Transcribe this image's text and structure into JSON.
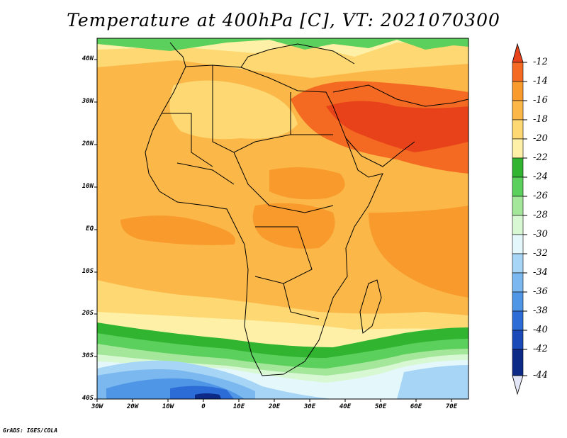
{
  "title": "Temperature at 400hPa [C], VT: 2021070300",
  "footer": "GrADS: IGES/COLA",
  "map": {
    "lat_labels": [
      "40N",
      "30N",
      "20N",
      "10N",
      "EQ",
      "10S",
      "20S",
      "30S",
      "40S"
    ],
    "lon_labels": [
      "30W",
      "20W",
      "10W",
      "0",
      "10E",
      "20E",
      "30E",
      "40E",
      "50E",
      "60E",
      "70E"
    ],
    "extent": {
      "lon": [
        -30,
        75
      ],
      "lat": [
        -40,
        45
      ]
    }
  },
  "colorbar": {
    "labels": [
      "-12",
      "-14",
      "-16",
      "-18",
      "-20",
      "-22",
      "-24",
      "-26",
      "-28",
      "-30",
      "-32",
      "-34",
      "-36",
      "-38",
      "-40",
      "-42",
      "-44"
    ],
    "colors": {
      "gt_-12": "#e8421a",
      "-14_-12": "#f46a22",
      "-16_-14": "#f89a2c",
      "-18_-16": "#fbb849",
      "-20_-18": "#fdd873",
      "-22_-20": "#fef1a7",
      "-24_-22": "#31b531",
      "-26_-24": "#5cd05c",
      "-28_-26": "#a4e79a",
      "-30_-28": "#d8f8d4",
      "-32_-30": "#e4f8fc",
      "-34_-32": "#a7d5f5",
      "-36_-34": "#7ab8ef",
      "-38_-36": "#4f97e6",
      "-40_-38": "#2b6cd6",
      "-42_-40": "#1a49b8",
      "-44_-42": "#0d2a86",
      "lt_-44": "#e3e6f6"
    }
  }
}
